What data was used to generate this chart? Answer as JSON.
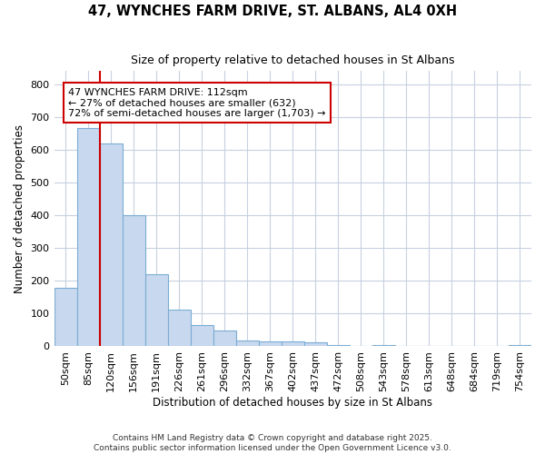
{
  "title1": "47, WYNCHES FARM DRIVE, ST. ALBANS, AL4 0XH",
  "title2": "Size of property relative to detached houses in St Albans",
  "xlabel": "Distribution of detached houses by size in St Albans",
  "ylabel": "Number of detached properties",
  "bar_labels": [
    "50sqm",
    "85sqm",
    "120sqm",
    "156sqm",
    "191sqm",
    "226sqm",
    "261sqm",
    "296sqm",
    "332sqm",
    "367sqm",
    "402sqm",
    "437sqm",
    "472sqm",
    "508sqm",
    "543sqm",
    "578sqm",
    "613sqm",
    "648sqm",
    "684sqm",
    "719sqm",
    "754sqm"
  ],
  "bar_heights": [
    180,
    665,
    620,
    400,
    220,
    112,
    65,
    47,
    18,
    15,
    15,
    12,
    3,
    0,
    3,
    0,
    0,
    0,
    0,
    0,
    5
  ],
  "bar_color": "#c8d8ee",
  "bar_edge_color": "#7aadd4",
  "red_line_x": 1.5,
  "red_line_color": "#cc0000",
  "annotation_text": "47 WYNCHES FARM DRIVE: 112sqm\n← 27% of detached houses are smaller (632)\n72% of semi-detached houses are larger (1,703) →",
  "annotation_box_color": "#ffffff",
  "annotation_box_edge": "#cc0000",
  "ylim": [
    0,
    840
  ],
  "yticks": [
    0,
    100,
    200,
    300,
    400,
    500,
    600,
    700,
    800
  ],
  "footnote1": "Contains HM Land Registry data © Crown copyright and database right 2025.",
  "footnote2": "Contains public sector information licensed under the Open Government Licence v3.0.",
  "bg_color": "#ffffff",
  "plot_bg_color": "#ffffff",
  "grid_color": "#c8d0e0"
}
